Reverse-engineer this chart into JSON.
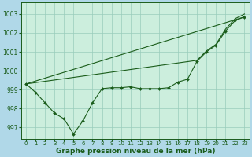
{
  "background_color": "#b0d8e8",
  "plot_bg_color": "#cceedd",
  "grid_color": "#99ccbb",
  "line_color": "#1a5c1a",
  "marker_color": "#1a5c1a",
  "xlabel": "Graphe pression niveau de la mer (hPa)",
  "xlabel_fontsize": 6.5,
  "ylabel_fontsize": 5.5,
  "tick_fontsize": 5.0,
  "xlim": [
    -0.5,
    23.5
  ],
  "ylim": [
    996.4,
    1003.6
  ],
  "yticks": [
    997,
    998,
    999,
    1000,
    1001,
    1002,
    1003
  ],
  "xticks": [
    0,
    1,
    2,
    3,
    4,
    5,
    6,
    7,
    8,
    9,
    10,
    11,
    12,
    13,
    14,
    15,
    16,
    17,
    18,
    19,
    20,
    21,
    22,
    23
  ],
  "series1_x": [
    0,
    1,
    2,
    3,
    4,
    5,
    6,
    7,
    8,
    9,
    10,
    11,
    12,
    13,
    14,
    15,
    16,
    17,
    18,
    19,
    20,
    21,
    22,
    23
  ],
  "series1_y": [
    999.3,
    998.85,
    998.3,
    997.75,
    997.45,
    996.65,
    997.35,
    998.3,
    999.05,
    999.1,
    999.1,
    999.15,
    999.05,
    999.05,
    999.05,
    999.1,
    999.4,
    999.55,
    1000.5,
    1001.0,
    1001.35,
    1002.1,
    1002.65,
    1002.85
  ],
  "series2_x": [
    0,
    23
  ],
  "series2_y": [
    999.3,
    1002.85
  ],
  "series3_x": [
    0,
    18,
    19,
    20,
    21,
    22,
    23
  ],
  "series3_y": [
    999.3,
    1000.55,
    1001.05,
    1001.4,
    1002.2,
    1002.75,
    1003.0
  ]
}
